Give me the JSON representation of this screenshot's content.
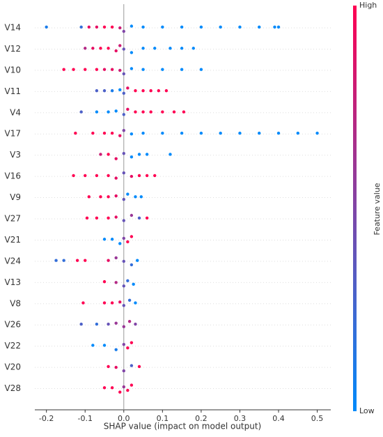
{
  "chart_data": {
    "type": "beeswarm",
    "x_label": "SHAP value (impact on model output)",
    "xlim": [
      -0.23,
      0.535
    ],
    "xticks": [
      -0.2,
      -0.1,
      {
        "value": 0,
        "label": "0.0"
      },
      0.1,
      0.2,
      0.3,
      0.4,
      0.5
    ],
    "colorbar": {
      "label": "Feature value",
      "high": "High",
      "low": "Low",
      "low_color": "#008afb",
      "high_color": "#ff0052"
    },
    "features": [
      {
        "name": "V14",
        "values": [
          -0.2,
          -0.11,
          -0.09,
          -0.07,
          -0.05,
          -0.03,
          -0.01,
          0,
          0.02,
          0.05,
          0.1,
          0.15,
          0.2,
          0.25,
          0.3,
          0.35,
          0.39,
          0.4
        ],
        "feature_values": [
          0.1,
          0.2,
          0.9,
          0.9,
          1,
          1,
          0.8,
          0.5,
          0,
          0,
          0,
          0,
          0,
          0,
          0,
          0,
          0,
          0
        ]
      },
      {
        "name": "V12",
        "values": [
          -0.1,
          -0.08,
          -0.06,
          -0.04,
          -0.02,
          -0.01,
          0,
          0.02,
          0.05,
          0.08,
          0.12,
          0.15,
          0.18
        ],
        "feature_values": [
          0.7,
          0.9,
          1,
          1,
          0.9,
          0.8,
          0.4,
          0,
          0,
          0,
          0,
          0,
          0
        ]
      },
      {
        "name": "V10",
        "values": [
          -0.155,
          -0.13,
          -0.1,
          -0.07,
          -0.05,
          -0.03,
          -0.01,
          0,
          0.02,
          0.05,
          0.1,
          0.15,
          0.2
        ],
        "feature_values": [
          1,
          1,
          1,
          1,
          0.9,
          0.9,
          0.8,
          0.4,
          0,
          0,
          0,
          0,
          0
        ]
      },
      {
        "name": "V11",
        "values": [
          -0.07,
          -0.05,
          -0.03,
          -0.01,
          0,
          0.01,
          0.03,
          0.05,
          0.07,
          0.09,
          0.11
        ],
        "feature_values": [
          0.3,
          0.3,
          0.1,
          0,
          0.3,
          0.9,
          1,
          1,
          1,
          1,
          1
        ]
      },
      {
        "name": "V4",
        "values": [
          -0.11,
          -0.07,
          -0.04,
          -0.02,
          0,
          0.01,
          0.03,
          0.05,
          0.07,
          0.1,
          0.13,
          0.155
        ],
        "feature_values": [
          0.3,
          0,
          0,
          0,
          0.3,
          0.9,
          1,
          1,
          1,
          1,
          1,
          1
        ]
      },
      {
        "name": "V17",
        "values": [
          -0.125,
          -0.08,
          -0.05,
          -0.03,
          -0.01,
          0,
          0.02,
          0.05,
          0.1,
          0.15,
          0.2,
          0.25,
          0.3,
          0.35,
          0.4,
          0.45,
          0.5
        ],
        "feature_values": [
          1,
          1,
          1,
          1,
          0.9,
          0.5,
          0,
          0,
          0,
          0,
          0,
          0,
          0,
          0,
          0,
          0,
          0
        ]
      },
      {
        "name": "V3",
        "values": [
          -0.06,
          -0.04,
          -0.02,
          0,
          0.02,
          0.04,
          0.06,
          0.12
        ],
        "feature_values": [
          0.8,
          1,
          0.9,
          0.4,
          0,
          0,
          0,
          0
        ]
      },
      {
        "name": "V16",
        "values": [
          -0.13,
          -0.1,
          -0.07,
          -0.04,
          -0.02,
          0,
          0.02,
          0.04,
          0.06,
          0.08
        ],
        "feature_values": [
          1,
          1,
          1,
          1,
          0.9,
          0.4,
          0.9,
          1,
          1,
          1
        ]
      },
      {
        "name": "V9",
        "values": [
          -0.09,
          -0.06,
          -0.04,
          -0.02,
          0,
          0.01,
          0.03,
          0.045
        ],
        "feature_values": [
          1,
          1,
          1,
          0.9,
          0.4,
          0,
          0,
          0
        ]
      },
      {
        "name": "V27",
        "values": [
          -0.095,
          -0.07,
          -0.04,
          -0.02,
          0,
          0.02,
          0.04,
          0.06
        ],
        "feature_values": [
          1,
          1,
          1,
          0.9,
          0.4,
          0.6,
          0.3,
          1
        ]
      },
      {
        "name": "V21",
        "values": [
          -0.05,
          -0.03,
          -0.01,
          0,
          0.01,
          0.02
        ],
        "feature_values": [
          0,
          0,
          0,
          0.5,
          1,
          1
        ]
      },
      {
        "name": "V24",
        "values": [
          -0.175,
          -0.155,
          -0.12,
          -0.1,
          -0.04,
          -0.02,
          0,
          0.02,
          0.035
        ],
        "feature_values": [
          0.2,
          0.2,
          1,
          1,
          0.9,
          0.6,
          0.4,
          0.2,
          0
        ]
      },
      {
        "name": "V13",
        "values": [
          -0.05,
          -0.02,
          0,
          0.01,
          0.025
        ],
        "feature_values": [
          1,
          0.7,
          0.4,
          0.2,
          0
        ]
      },
      {
        "name": "V8",
        "values": [
          -0.105,
          -0.05,
          -0.03,
          -0.01,
          0,
          0.015,
          0.03
        ],
        "feature_values": [
          1,
          1,
          1,
          0.9,
          0.4,
          0.2,
          0
        ]
      },
      {
        "name": "V26",
        "values": [
          -0.11,
          -0.07,
          -0.04,
          -0.02,
          0,
          0.015,
          0.03
        ],
        "feature_values": [
          0.3,
          0.2,
          0.4,
          0.6,
          0.6,
          0.7,
          0.5
        ]
      },
      {
        "name": "V22",
        "values": [
          -0.08,
          -0.05,
          -0.02,
          0,
          0.01,
          0.02
        ],
        "feature_values": [
          0,
          0,
          0.1,
          0.5,
          1,
          1
        ]
      },
      {
        "name": "V20",
        "values": [
          -0.04,
          -0.02,
          0,
          0.02,
          0.04
        ],
        "feature_values": [
          1,
          0.9,
          0.5,
          0.3,
          1
        ]
      },
      {
        "name": "V28",
        "values": [
          -0.05,
          -0.03,
          -0.01,
          0,
          0.01,
          0.02
        ],
        "feature_values": [
          1,
          1,
          1,
          0.6,
          1,
          1
        ]
      }
    ]
  }
}
